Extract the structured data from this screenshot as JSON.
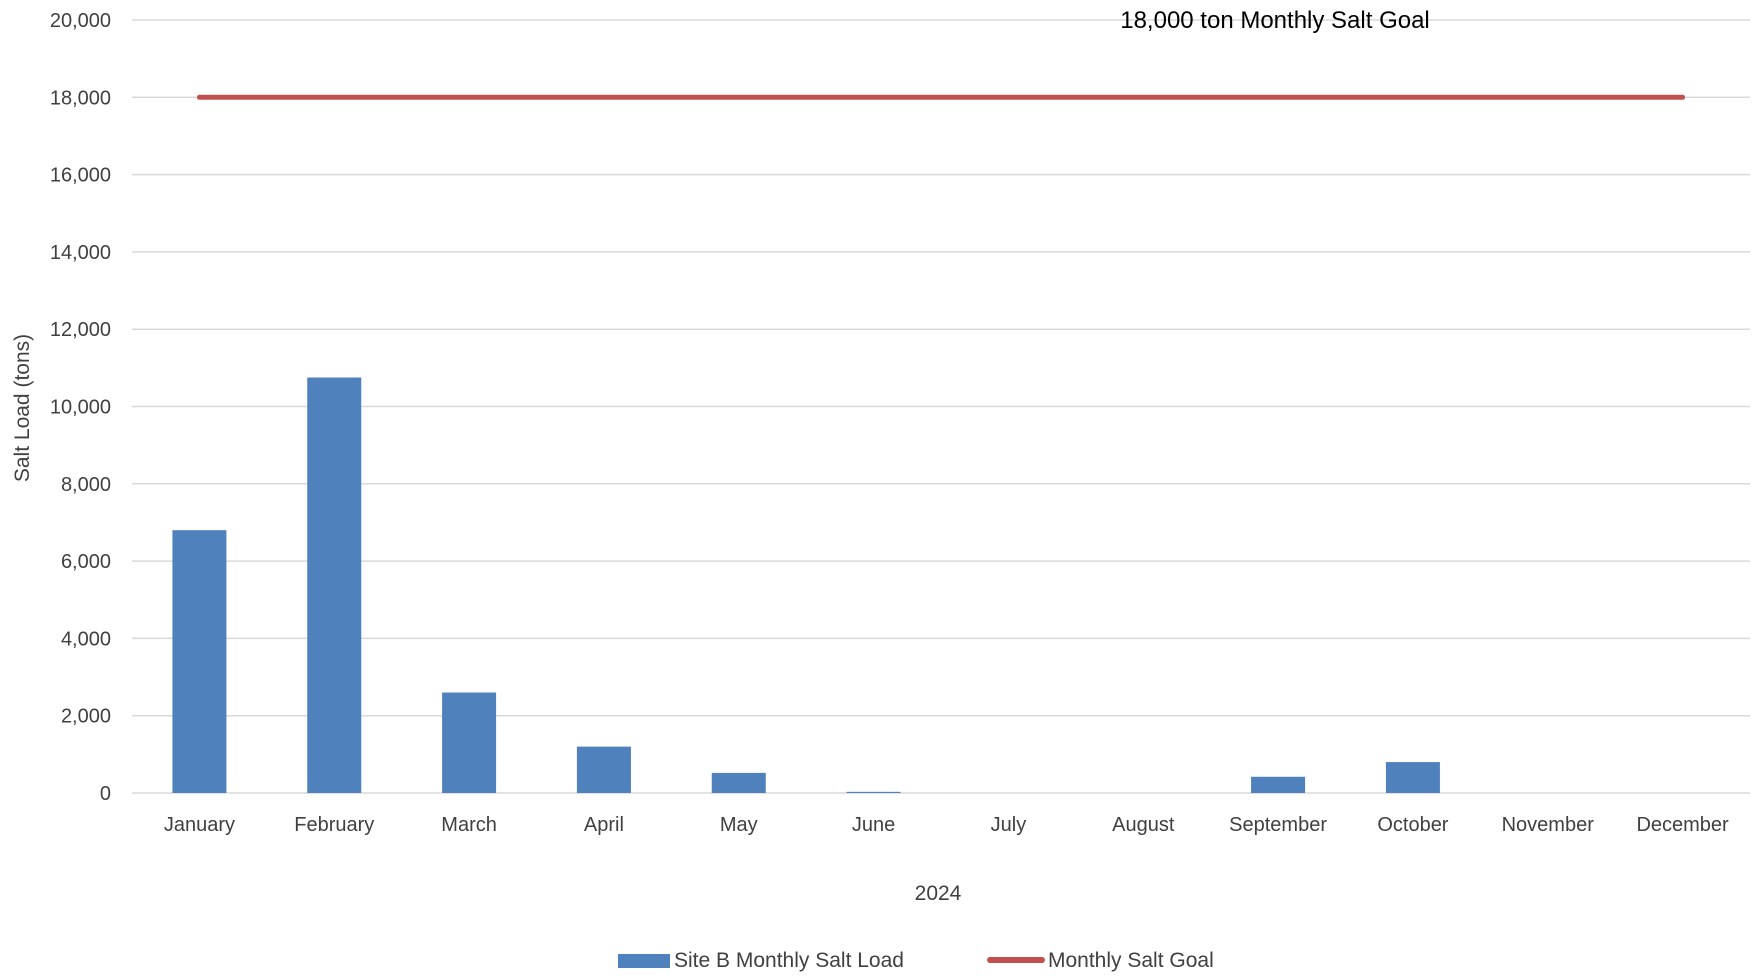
{
  "chart_data": {
    "type": "bar",
    "title": "",
    "xlabel": "2024",
    "ylabel": "Salt Load (tons)",
    "ylim": [
      0,
      20000
    ],
    "yticks": [
      0,
      2000,
      4000,
      6000,
      8000,
      10000,
      12000,
      14000,
      16000,
      18000,
      20000
    ],
    "ytick_labels": [
      "0",
      "2,000",
      "4,000",
      "6,000",
      "8,000",
      "10,000",
      "12,000",
      "14,000",
      "16,000",
      "18,000",
      "20,000"
    ],
    "grid": true,
    "legend_position": "bottom",
    "categories": [
      "January",
      "February",
      "March",
      "April",
      "May",
      "June",
      "July",
      "August",
      "September",
      "October",
      "November",
      "December"
    ],
    "series": [
      {
        "name": "Site B Monthly Salt Load",
        "type": "bar",
        "color": "#4f81bd",
        "values": [
          6800,
          10750,
          2600,
          1200,
          520,
          30,
          0,
          0,
          420,
          800,
          0,
          0
        ]
      },
      {
        "name": "Monthly Salt Goal",
        "type": "line",
        "color": "#c0504d",
        "values": [
          18000,
          18000,
          18000,
          18000,
          18000,
          18000,
          18000,
          18000,
          18000,
          18000,
          18000,
          18000
        ]
      }
    ],
    "annotations": [
      {
        "text": "18,000 ton Monthly Salt Goal"
      }
    ]
  }
}
